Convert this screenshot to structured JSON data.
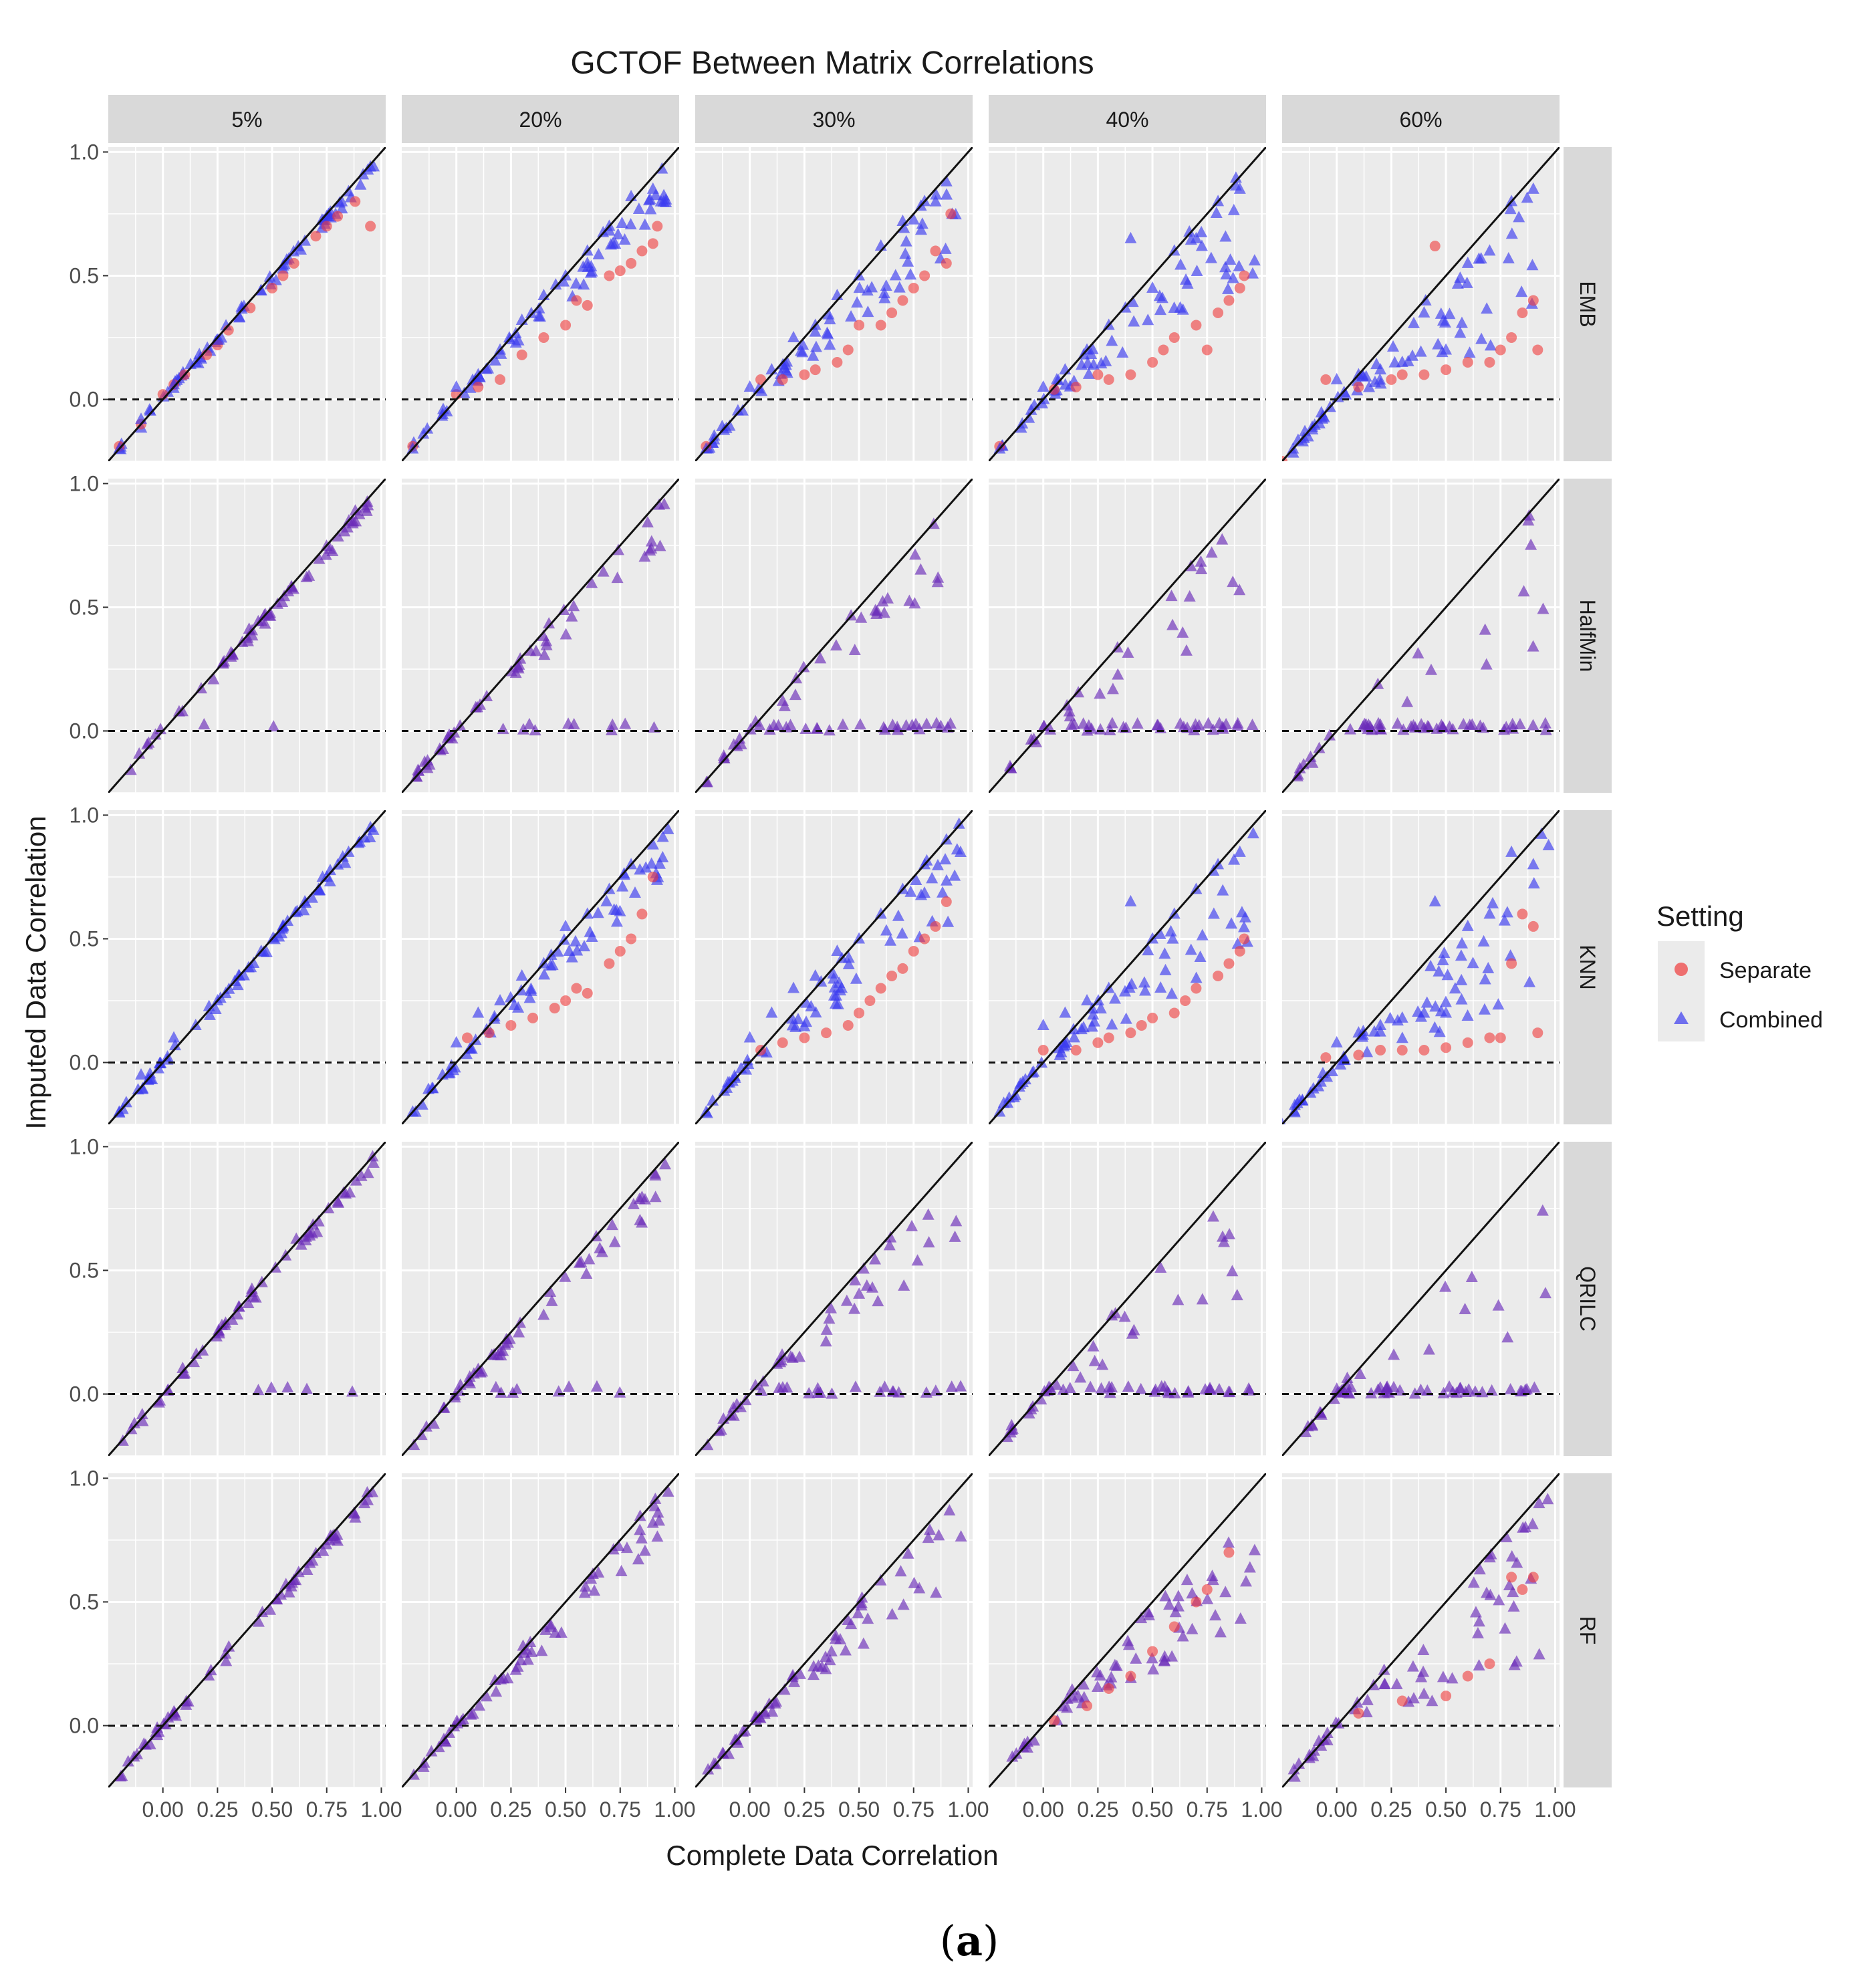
{
  "figure": {
    "title": "GCTOF Between Matrix Correlations",
    "xlabel": "Complete Data Correlation",
    "ylabel": "Imputed Data Correlation",
    "caption_open": "(",
    "caption_letter": "a",
    "caption_close": ")",
    "legend": {
      "title": "Setting",
      "items": [
        {
          "label": "Separate",
          "shape": "circle",
          "color": "#f8766d"
        },
        {
          "label": "Combined",
          "shape": "triangle",
          "color": "#3a3af0"
        }
      ]
    },
    "colors": {
      "panel_bg": "#ebebeb",
      "strip_bg": "#d9d9d9",
      "grid": "#ffffff",
      "separate": "#f03b3b",
      "combined": "#3a3af0",
      "overlap": "#6a2bb8"
    }
  },
  "chart_data": {
    "type": "scatter",
    "facet_columns": [
      "5%",
      "20%",
      "30%",
      "40%",
      "60%"
    ],
    "facet_rows": [
      "EMB",
      "HalfMin",
      "KNN",
      "QRILC",
      "RF"
    ],
    "x_ticks": [
      "0.00",
      "0.25",
      "0.50",
      "0.75",
      "1.00"
    ],
    "y_ticks": [
      "0.0",
      "0.5",
      "1.0"
    ],
    "xlim": [
      -0.25,
      1.02
    ],
    "ylim": [
      -0.25,
      1.02
    ],
    "reference_lines": [
      {
        "type": "identity",
        "slope": 1,
        "intercept": 0,
        "style": "solid"
      },
      {
        "type": "horizontal",
        "y": 0,
        "style": "dashed"
      }
    ],
    "series": [
      {
        "name": "Separate",
        "panels": {
          "EMB|5%": [
            [
              -0.2,
              -0.19
            ],
            [
              -0.1,
              -0.1
            ],
            [
              0.0,
              0.02
            ],
            [
              0.05,
              0.06
            ],
            [
              0.1,
              0.1
            ],
            [
              0.2,
              0.18
            ],
            [
              0.25,
              0.22
            ],
            [
              0.3,
              0.28
            ],
            [
              0.4,
              0.37
            ],
            [
              0.5,
              0.45
            ],
            [
              0.55,
              0.5
            ],
            [
              0.6,
              0.55
            ],
            [
              0.7,
              0.66
            ],
            [
              0.75,
              0.7
            ],
            [
              0.8,
              0.74
            ],
            [
              0.88,
              0.8
            ],
            [
              0.95,
              0.7
            ]
          ],
          "EMB|20%": [
            [
              -0.2,
              -0.19
            ],
            [
              0.0,
              0.02
            ],
            [
              0.1,
              0.05
            ],
            [
              0.2,
              0.08
            ],
            [
              0.3,
              0.18
            ],
            [
              0.4,
              0.25
            ],
            [
              0.5,
              0.3
            ],
            [
              0.55,
              0.4
            ],
            [
              0.6,
              0.38
            ],
            [
              0.7,
              0.5
            ],
            [
              0.75,
              0.52
            ],
            [
              0.8,
              0.55
            ],
            [
              0.85,
              0.6
            ],
            [
              0.9,
              0.63
            ],
            [
              0.92,
              0.7
            ]
          ],
          "EMB|30%": [
            [
              -0.2,
              -0.19
            ],
            [
              0.05,
              0.08
            ],
            [
              0.15,
              0.08
            ],
            [
              0.25,
              0.1
            ],
            [
              0.3,
              0.12
            ],
            [
              0.4,
              0.15
            ],
            [
              0.45,
              0.2
            ],
            [
              0.5,
              0.3
            ],
            [
              0.6,
              0.3
            ],
            [
              0.65,
              0.35
            ],
            [
              0.7,
              0.4
            ],
            [
              0.75,
              0.45
            ],
            [
              0.8,
              0.5
            ],
            [
              0.85,
              0.6
            ],
            [
              0.9,
              0.55
            ],
            [
              0.92,
              0.75
            ]
          ],
          "EMB|40%": [
            [
              -0.2,
              -0.19
            ],
            [
              0.05,
              0.04
            ],
            [
              0.15,
              0.05
            ],
            [
              0.25,
              0.1
            ],
            [
              0.3,
              0.08
            ],
            [
              0.4,
              0.1
            ],
            [
              0.5,
              0.15
            ],
            [
              0.55,
              0.2
            ],
            [
              0.6,
              0.25
            ],
            [
              0.7,
              0.3
            ],
            [
              0.75,
              0.2
            ],
            [
              0.8,
              0.35
            ],
            [
              0.85,
              0.4
            ],
            [
              0.9,
              0.45
            ],
            [
              0.92,
              0.5
            ]
          ],
          "EMB|60%": [
            [
              -0.25,
              -0.25
            ],
            [
              -0.05,
              0.08
            ],
            [
              0.1,
              0.05
            ],
            [
              0.25,
              0.08
            ],
            [
              0.3,
              0.1
            ],
            [
              0.4,
              0.1
            ],
            [
              0.45,
              0.62
            ],
            [
              0.5,
              0.12
            ],
            [
              0.6,
              0.15
            ],
            [
              0.7,
              0.15
            ],
            [
              0.75,
              0.2
            ],
            [
              0.8,
              0.25
            ],
            [
              0.85,
              0.35
            ],
            [
              0.9,
              0.4
            ],
            [
              0.92,
              0.2
            ]
          ],
          "KNN|20%": [
            [
              0.05,
              0.1
            ],
            [
              0.15,
              0.12
            ],
            [
              0.25,
              0.15
            ],
            [
              0.35,
              0.18
            ],
            [
              0.45,
              0.22
            ],
            [
              0.5,
              0.25
            ],
            [
              0.55,
              0.3
            ],
            [
              0.6,
              0.28
            ],
            [
              0.7,
              0.4
            ],
            [
              0.75,
              0.45
            ],
            [
              0.8,
              0.5
            ],
            [
              0.85,
              0.6
            ],
            [
              0.9,
              0.75
            ]
          ],
          "KNN|30%": [
            [
              0.05,
              0.05
            ],
            [
              0.15,
              0.08
            ],
            [
              0.25,
              0.1
            ],
            [
              0.35,
              0.12
            ],
            [
              0.45,
              0.15
            ],
            [
              0.5,
              0.2
            ],
            [
              0.55,
              0.25
            ],
            [
              0.6,
              0.3
            ],
            [
              0.65,
              0.35
            ],
            [
              0.7,
              0.38
            ],
            [
              0.75,
              0.45
            ],
            [
              0.8,
              0.5
            ],
            [
              0.85,
              0.55
            ],
            [
              0.9,
              0.65
            ]
          ],
          "KNN|40%": [
            [
              0.0,
              0.05
            ],
            [
              0.15,
              0.05
            ],
            [
              0.25,
              0.08
            ],
            [
              0.3,
              0.1
            ],
            [
              0.4,
              0.12
            ],
            [
              0.45,
              0.15
            ],
            [
              0.5,
              0.18
            ],
            [
              0.6,
              0.2
            ],
            [
              0.65,
              0.25
            ],
            [
              0.7,
              0.3
            ],
            [
              0.8,
              0.35
            ],
            [
              0.85,
              0.4
            ],
            [
              0.9,
              0.45
            ],
            [
              0.92,
              0.5
            ]
          ],
          "KNN|60%": [
            [
              -0.05,
              0.02
            ],
            [
              0.1,
              0.03
            ],
            [
              0.2,
              0.05
            ],
            [
              0.3,
              0.05
            ],
            [
              0.4,
              0.05
            ],
            [
              0.5,
              0.06
            ],
            [
              0.6,
              0.08
            ],
            [
              0.7,
              0.1
            ],
            [
              0.75,
              0.1
            ],
            [
              0.8,
              0.4
            ],
            [
              0.85,
              0.6
            ],
            [
              0.9,
              0.55
            ],
            [
              0.92,
              0.12
            ]
          ],
          "RF|40%": [
            [
              0.05,
              0.02
            ],
            [
              0.2,
              0.08
            ],
            [
              0.3,
              0.15
            ],
            [
              0.4,
              0.2
            ],
            [
              0.5,
              0.3
            ],
            [
              0.6,
              0.4
            ],
            [
              0.7,
              0.5
            ],
            [
              0.75,
              0.55
            ],
            [
              0.85,
              0.7
            ]
          ],
          "RF|60%": [
            [
              0.1,
              0.05
            ],
            [
              0.3,
              0.1
            ],
            [
              0.5,
              0.12
            ],
            [
              0.6,
              0.2
            ],
            [
              0.7,
              0.25
            ],
            [
              0.8,
              0.6
            ],
            [
              0.85,
              0.55
            ],
            [
              0.9,
              0.6
            ]
          ]
        }
      },
      {
        "name": "Combined",
        "panels": {
          "EMB|5%": [
            [
              -0.2,
              -0.2
            ],
            [
              -0.1,
              -0.08
            ],
            [
              0.05,
              0.06
            ],
            [
              0.15,
              0.15
            ],
            [
              0.25,
              0.24
            ],
            [
              0.35,
              0.33
            ],
            [
              0.45,
              0.44
            ],
            [
              0.55,
              0.54
            ],
            [
              0.65,
              0.64
            ],
            [
              0.75,
              0.74
            ],
            [
              0.85,
              0.84
            ],
            [
              0.95,
              0.94
            ]
          ],
          "EMB|20%": [
            [
              -0.2,
              -0.2
            ],
            [
              0.0,
              0.05
            ],
            [
              0.1,
              0.1
            ],
            [
              0.2,
              0.2
            ],
            [
              0.3,
              0.32
            ],
            [
              0.4,
              0.42
            ],
            [
              0.5,
              0.5
            ],
            [
              0.6,
              0.6
            ],
            [
              0.7,
              0.7
            ],
            [
              0.8,
              0.82
            ],
            [
              0.9,
              0.85
            ]
          ],
          "EMB|30%": [
            [
              -0.2,
              -0.2
            ],
            [
              0.0,
              0.05
            ],
            [
              0.1,
              0.12
            ],
            [
              0.2,
              0.25
            ],
            [
              0.3,
              0.3
            ],
            [
              0.4,
              0.42
            ],
            [
              0.5,
              0.5
            ],
            [
              0.6,
              0.62
            ],
            [
              0.7,
              0.72
            ],
            [
              0.8,
              0.8
            ],
            [
              0.9,
              0.88
            ]
          ],
          "EMB|40%": [
            [
              -0.2,
              -0.2
            ],
            [
              0.0,
              0.05
            ],
            [
              0.1,
              0.12
            ],
            [
              0.2,
              0.2
            ],
            [
              0.3,
              0.3
            ],
            [
              0.4,
              0.65
            ],
            [
              0.5,
              0.45
            ],
            [
              0.6,
              0.6
            ],
            [
              0.7,
              0.65
            ],
            [
              0.8,
              0.8
            ],
            [
              0.9,
              0.85
            ]
          ],
          "EMB|60%": [
            [
              -0.2,
              -0.2
            ],
            [
              0.0,
              0.08
            ],
            [
              0.1,
              0.1
            ],
            [
              0.2,
              0.12
            ],
            [
              0.3,
              0.15
            ],
            [
              0.4,
              0.35
            ],
            [
              0.5,
              0.2
            ],
            [
              0.6,
              0.55
            ],
            [
              0.7,
              0.6
            ],
            [
              0.8,
              0.8
            ],
            [
              0.9,
              0.85
            ]
          ],
          "KNN|5%": [
            [
              -0.2,
              -0.2
            ],
            [
              -0.1,
              -0.05
            ],
            [
              0.05,
              0.1
            ],
            [
              0.15,
              0.15
            ],
            [
              0.25,
              0.25
            ],
            [
              0.35,
              0.35
            ],
            [
              0.45,
              0.45
            ],
            [
              0.55,
              0.55
            ],
            [
              0.65,
              0.65
            ],
            [
              0.75,
              0.75
            ],
            [
              0.85,
              0.85
            ],
            [
              0.95,
              0.95
            ]
          ],
          "KNN|20%": [
            [
              -0.2,
              -0.2
            ],
            [
              0.0,
              0.08
            ],
            [
              0.1,
              0.2
            ],
            [
              0.2,
              0.25
            ],
            [
              0.3,
              0.35
            ],
            [
              0.4,
              0.4
            ],
            [
              0.5,
              0.55
            ],
            [
              0.6,
              0.6
            ],
            [
              0.7,
              0.7
            ],
            [
              0.8,
              0.8
            ],
            [
              0.9,
              0.88
            ]
          ],
          "KNN|30%": [
            [
              -0.2,
              -0.2
            ],
            [
              0.0,
              0.1
            ],
            [
              0.1,
              0.2
            ],
            [
              0.2,
              0.3
            ],
            [
              0.3,
              0.35
            ],
            [
              0.4,
              0.45
            ],
            [
              0.5,
              0.5
            ],
            [
              0.6,
              0.6
            ],
            [
              0.7,
              0.7
            ],
            [
              0.8,
              0.8
            ],
            [
              0.9,
              0.9
            ]
          ],
          "KNN|40%": [
            [
              -0.2,
              -0.2
            ],
            [
              0.0,
              0.15
            ],
            [
              0.1,
              0.2
            ],
            [
              0.2,
              0.25
            ],
            [
              0.3,
              0.3
            ],
            [
              0.4,
              0.65
            ],
            [
              0.5,
              0.5
            ],
            [
              0.6,
              0.6
            ],
            [
              0.7,
              0.7
            ],
            [
              0.8,
              0.8
            ],
            [
              0.9,
              0.85
            ]
          ],
          "KNN|60%": [
            [
              -0.25,
              -0.25
            ],
            [
              0.0,
              0.08
            ],
            [
              0.1,
              0.12
            ],
            [
              0.2,
              0.15
            ],
            [
              0.3,
              0.18
            ],
            [
              0.4,
              0.2
            ],
            [
              0.45,
              0.65
            ],
            [
              0.5,
              0.2
            ],
            [
              0.6,
              0.55
            ],
            [
              0.7,
              0.6
            ],
            [
              0.8,
              0.85
            ],
            [
              0.9,
              0.8
            ]
          ]
        }
      }
    ],
    "overlapping_panels_note": ""
  }
}
